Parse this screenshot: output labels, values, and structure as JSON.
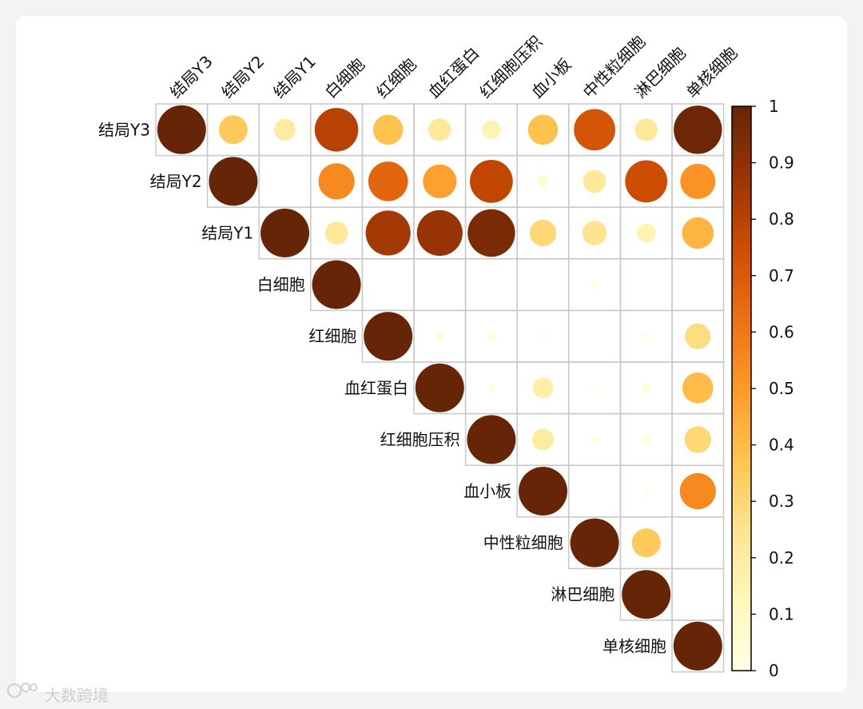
{
  "watermark": {
    "text": "大数跨境"
  },
  "chart_data": {
    "type": "heatmap",
    "variables": [
      "结局Y3",
      "结局Y2",
      "结局Y1",
      "白细胞",
      "红细胞",
      "血红蛋白",
      "红细胞压积",
      "血小板",
      "中性粒细胞",
      "淋巴细胞",
      "单核细胞"
    ],
    "matrix": [
      [
        1.0,
        0.35,
        0.2,
        0.8,
        0.38,
        0.22,
        0.15,
        0.38,
        0.72,
        0.22,
        0.98
      ],
      [
        null,
        1.0,
        0.0,
        0.55,
        0.66,
        0.48,
        0.78,
        0.05,
        0.22,
        0.75,
        0.52
      ],
      [
        null,
        null,
        1.0,
        0.22,
        0.85,
        0.88,
        0.95,
        0.3,
        0.25,
        0.15,
        0.42
      ],
      [
        null,
        null,
        null,
        1.0,
        0.0,
        0.0,
        0.0,
        0.0,
        0.02,
        0.0,
        0.0
      ],
      [
        null,
        null,
        null,
        null,
        1.0,
        0.03,
        0.03,
        0.01,
        0.0,
        0.02,
        0.28
      ],
      [
        null,
        null,
        null,
        null,
        null,
        1.0,
        0.02,
        0.18,
        0.01,
        0.04,
        0.4
      ],
      [
        null,
        null,
        null,
        null,
        null,
        null,
        1.0,
        0.2,
        0.02,
        0.03,
        0.3
      ],
      [
        null,
        null,
        null,
        null,
        null,
        null,
        null,
        1.0,
        0.0,
        0.01,
        0.55
      ],
      [
        null,
        null,
        null,
        null,
        null,
        null,
        null,
        null,
        1.0,
        0.35,
        0.0
      ],
      [
        null,
        null,
        null,
        null,
        null,
        null,
        null,
        null,
        null,
        1.0,
        0.0
      ],
      [
        null,
        null,
        null,
        null,
        null,
        null,
        null,
        null,
        null,
        null,
        1.0
      ]
    ],
    "colorbar": {
      "range": [
        0,
        1
      ],
      "ticks": [
        "0",
        "0.1",
        "0.2",
        "0.3",
        "0.4",
        "0.5",
        "0.6",
        "0.7",
        "0.8",
        "0.9",
        "1"
      ],
      "colormap": [
        "#ffffe5",
        "#fff7bc",
        "#fee391",
        "#fec44f",
        "#fe9929",
        "#ec7014",
        "#cc4c02",
        "#993404",
        "#662506"
      ]
    },
    "title": "",
    "xlabel": "",
    "ylabel": ""
  }
}
